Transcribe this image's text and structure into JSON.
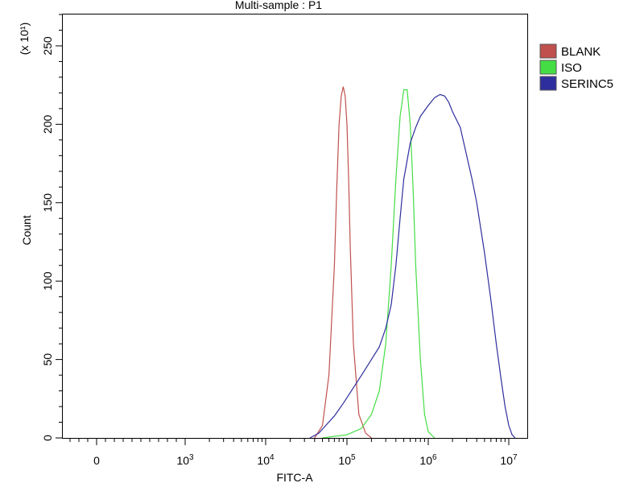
{
  "chart_data": {
    "type": "line",
    "title": "Multi-sample : P1",
    "xlabel": "FITC-A",
    "ylabel": "Count",
    "y_multiplier_label": "(x 10¹)",
    "x_scale": "biexponential",
    "xlim": [
      -1000,
      13000000
    ],
    "ylim": [
      0,
      270
    ],
    "x_tick_labels": [
      {
        "value": 0,
        "base": "0",
        "exp": ""
      },
      {
        "value": 1000,
        "base": "10",
        "exp": "3"
      },
      {
        "value": 10000,
        "base": "10",
        "exp": "4"
      },
      {
        "value": 100000,
        "base": "10",
        "exp": "5"
      },
      {
        "value": 1000000,
        "base": "10",
        "exp": "6"
      },
      {
        "value": 10000000,
        "base": "10",
        "exp": "7"
      }
    ],
    "y_ticks": [
      0,
      50,
      100,
      150,
      200,
      250
    ],
    "legend_position": "top-right",
    "series": [
      {
        "name": "BLANK",
        "color": "#c0504d",
        "x": [
          40000,
          50000,
          60000,
          70000,
          75000,
          80000,
          85000,
          90000,
          95000,
          100000,
          105000,
          110000,
          120000,
          140000,
          170000,
          200000
        ],
        "y": [
          0,
          8,
          40,
          110,
          160,
          200,
          218,
          224,
          218,
          200,
          165,
          120,
          60,
          15,
          3,
          0
        ]
      },
      {
        "name": "ISO",
        "color": "#44dd44",
        "x": [
          50000,
          100000,
          150000,
          200000,
          250000,
          300000,
          350000,
          400000,
          450000,
          500000,
          550000,
          600000,
          650000,
          700000,
          800000,
          900000,
          1000000,
          1200000
        ],
        "y": [
          0,
          2,
          6,
          15,
          30,
          60,
          110,
          165,
          205,
          222,
          222,
          200,
          160,
          110,
          50,
          15,
          4,
          0
        ]
      },
      {
        "name": "SERINC5",
        "color": "#2e2e9e",
        "x": [
          35000,
          45000,
          55000,
          70000,
          90000,
          120000,
          160000,
          200000,
          250000,
          300000,
          350000,
          400000,
          450000,
          500000,
          600000,
          700000,
          800000,
          1000000,
          1200000,
          1400000,
          1600000,
          1800000,
          2000000,
          2500000,
          3000000,
          3500000,
          4000000,
          5000000,
          6000000,
          7000000,
          8000000,
          9000000,
          10000000,
          11000000,
          12000000
        ],
        "y": [
          0,
          3,
          8,
          14,
          22,
          32,
          42,
          50,
          58,
          70,
          85,
          110,
          140,
          165,
          188,
          198,
          205,
          212,
          217,
          219,
          218,
          214,
          208,
          198,
          180,
          165,
          150,
          118,
          88,
          60,
          38,
          20,
          8,
          2,
          0
        ]
      }
    ]
  }
}
